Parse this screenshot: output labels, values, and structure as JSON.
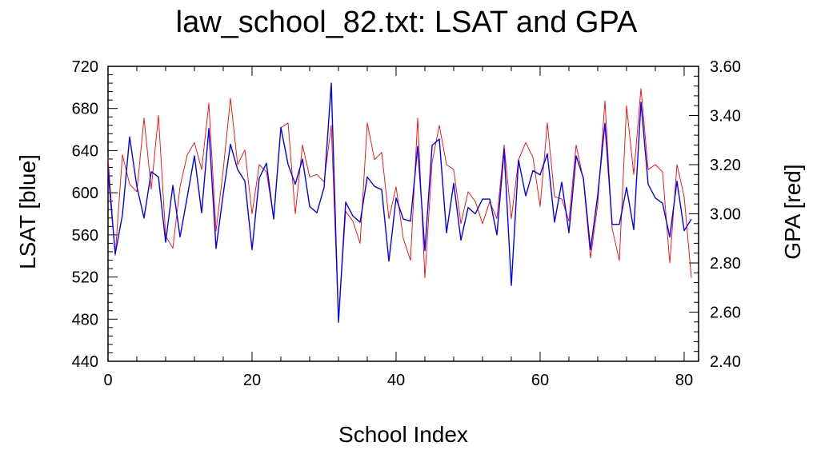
{
  "chart_data": {
    "type": "line",
    "title": "law_school_82.txt: LSAT and GPA",
    "xlabel": "School Index",
    "ylabel_left": "LSAT [blue]",
    "ylabel_right": "GPA [red]",
    "xlim": [
      0,
      82
    ],
    "ylim_left": [
      440,
      720
    ],
    "ylim_right": [
      2.4,
      3.6
    ],
    "x_ticks": [
      0,
      20,
      40,
      60,
      80
    ],
    "y_ticks_left": [
      440,
      480,
      520,
      560,
      600,
      640,
      680,
      720
    ],
    "y_ticks_right": [
      "2.40",
      "2.60",
      "2.80",
      "3.00",
      "3.20",
      "3.40",
      "3.60"
    ],
    "x": [
      0,
      1,
      2,
      3,
      4,
      5,
      6,
      7,
      8,
      9,
      10,
      11,
      12,
      13,
      14,
      15,
      16,
      17,
      18,
      19,
      20,
      21,
      22,
      23,
      24,
      25,
      26,
      27,
      28,
      29,
      30,
      31,
      32,
      33,
      34,
      35,
      36,
      37,
      38,
      39,
      40,
      41,
      42,
      43,
      44,
      45,
      46,
      47,
      48,
      49,
      50,
      51,
      52,
      53,
      54,
      55,
      56,
      57,
      58,
      59,
      60,
      61,
      62,
      63,
      64,
      65,
      66,
      67,
      68,
      69,
      70,
      71,
      72,
      73,
      74,
      75,
      76,
      77,
      78,
      79,
      80,
      81
    ],
    "series": [
      {
        "name": "LSAT",
        "axis": "left",
        "color": "#0000ff",
        "values": [
          622,
          542,
          579,
          653,
          606,
          576,
          620,
          615,
          553,
          607,
          558,
          596,
          635,
          581,
          661,
          547,
          599,
          646,
          622,
          611,
          546,
          614,
          628,
          575,
          662,
          627,
          608,
          632,
          587,
          581,
          605,
          704,
          477,
          591,
          578,
          572,
          615,
          606,
          603,
          535,
          595,
          575,
          573,
          644,
          545,
          645,
          651,
          562,
          609,
          555,
          586,
          580,
          594,
          594,
          560,
          641,
          512,
          631,
          597,
          621,
          617,
          637,
          572,
          610,
          562,
          635,
          614,
          546,
          598,
          666,
          570,
          570,
          605,
          565,
          686,
          608,
          595,
          590,
          558,
          611,
          564,
          575
        ]
      },
      {
        "name": "GPA",
        "axis": "right",
        "color": "#ff0000",
        "values": [
          3.23,
          2.83,
          3.24,
          3.12,
          3.09,
          3.39,
          3.1,
          3.4,
          2.91,
          2.86,
          3.11,
          3.24,
          3.29,
          3.18,
          3.45,
          2.93,
          3.18,
          3.47,
          3.2,
          3.26,
          3.0,
          3.2,
          3.17,
          2.98,
          3.35,
          3.37,
          3.0,
          3.28,
          3.15,
          3.16,
          3.13,
          3.36,
          2.57,
          3.01,
          2.97,
          2.88,
          3.37,
          3.22,
          3.25,
          2.98,
          3.11,
          2.9,
          2.81,
          3.39,
          2.74,
          3.21,
          3.36,
          3.2,
          3.18,
          2.96,
          3.09,
          3.05,
          2.96,
          3.05,
          2.98,
          3.28,
          2.98,
          3.22,
          3.29,
          3.23,
          3.03,
          3.37,
          3.07,
          3.06,
          2.97,
          3.28,
          3.14,
          2.82,
          3.04,
          3.46,
          2.94,
          2.81,
          3.44,
          3.16,
          3.51,
          3.18,
          3.2,
          3.17,
          2.8,
          3.2,
          3.07,
          2.74
        ]
      }
    ],
    "grid": false
  }
}
